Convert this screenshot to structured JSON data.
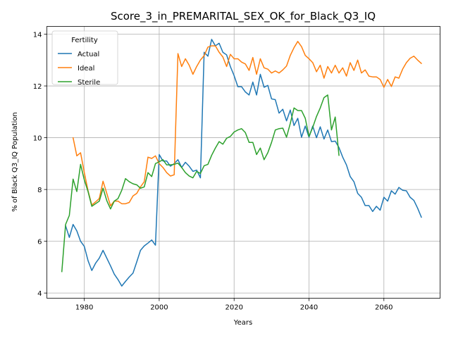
{
  "chart_data": {
    "type": "line",
    "title": "Score_3_in_PREMARITAL_SEX_OK_for_Black_Q3_IQ",
    "xlabel": "Years",
    "ylabel": "% of Black Q3_IQ Population",
    "xlim": [
      1970,
      2075
    ],
    "ylim": [
      3.8,
      14.3
    ],
    "xticks": [
      1980,
      2000,
      2020,
      2040,
      2060
    ],
    "yticks": [
      4,
      6,
      8,
      10,
      12,
      14
    ],
    "grid": true,
    "legend": {
      "title": "Fertility",
      "placement": "top-left"
    },
    "series": [
      {
        "name": "Actual",
        "color": "#1f77b4",
        "x": [
          1975,
          1976,
          1977,
          1978,
          1979,
          1980,
          1981,
          1982,
          1983,
          1984,
          1985,
          1986,
          1987,
          1988,
          1989,
          1990,
          1991,
          1992,
          1993,
          1994,
          1995,
          1996,
          1997,
          1998,
          1999,
          2000,
          2001,
          2002,
          2003,
          2004,
          2005,
          2006,
          2007,
          2008,
          2009,
          2010,
          2011,
          2012,
          2013,
          2014,
          2015,
          2016,
          2017,
          2018,
          2019,
          2020,
          2021,
          2022,
          2023,
          2024,
          2025,
          2026,
          2027,
          2028,
          2029,
          2030,
          2031,
          2032,
          2033,
          2034,
          2035,
          2036,
          2037,
          2038,
          2039,
          2040,
          2041,
          2042,
          2043,
          2044,
          2045,
          2046,
          2047,
          2048,
          2049,
          2050,
          2051,
          2052,
          2053,
          2054,
          2055,
          2056,
          2057,
          2058,
          2059,
          2060,
          2061,
          2062,
          2063,
          2064,
          2065,
          2066,
          2067,
          2068,
          2069,
          2070
        ],
        "values": [
          6.6,
          6.15,
          6.65,
          6.4,
          6.0,
          5.8,
          5.25,
          4.87,
          5.15,
          5.35,
          5.65,
          5.35,
          5.05,
          4.73,
          4.52,
          4.27,
          4.45,
          4.62,
          4.77,
          5.2,
          5.65,
          5.82,
          5.93,
          6.05,
          5.85,
          9.35,
          9.1,
          9.1,
          8.9,
          9.0,
          9.15,
          8.85,
          9.05,
          8.9,
          8.7,
          8.75,
          8.45,
          13.3,
          13.15,
          13.8,
          13.55,
          13.65,
          13.3,
          13.2,
          12.75,
          12.4,
          11.97,
          11.97,
          11.77,
          11.65,
          12.15,
          11.65,
          12.45,
          11.95,
          12.02,
          11.5,
          11.47,
          10.95,
          11.1,
          10.65,
          11.07,
          10.47,
          10.75,
          10.02,
          10.45,
          10.02,
          10.45,
          10.0,
          10.42,
          9.95,
          10.3,
          9.85,
          9.87,
          9.62,
          9.25,
          8.95,
          8.5,
          8.3,
          7.85,
          7.7,
          7.38,
          7.38,
          7.15,
          7.35,
          7.2,
          7.7,
          7.55,
          7.95,
          7.82,
          8.08,
          7.97,
          7.95,
          7.7,
          7.58,
          7.28,
          6.93
        ]
      },
      {
        "name": "Ideal",
        "color": "#ff7f0e",
        "x": [
          1977,
          1978,
          1979,
          1980,
          1981,
          1982,
          1983,
          1984,
          1985,
          1986,
          1987,
          1988,
          1989,
          1990,
          1991,
          1992,
          1993,
          1994,
          1995,
          1996,
          1997,
          1998,
          1999,
          2000,
          2001,
          2002,
          2003,
          2004,
          2005,
          2006,
          2007,
          2008,
          2009,
          2010,
          2011,
          2012,
          2013,
          2014,
          2015,
          2016,
          2017,
          2018,
          2019,
          2020,
          2021,
          2022,
          2023,
          2024,
          2025,
          2026,
          2027,
          2028,
          2029,
          2030,
          2031,
          2032,
          2033,
          2034,
          2035,
          2036,
          2037,
          2038,
          2039,
          2040,
          2041,
          2042,
          2043,
          2044,
          2045,
          2046,
          2047,
          2048,
          2049,
          2050,
          2051,
          2052,
          2053,
          2054,
          2055,
          2056,
          2057,
          2058,
          2059,
          2060,
          2061,
          2062,
          2063,
          2064,
          2065,
          2066,
          2067,
          2068,
          2069,
          2070
        ],
        "values": [
          10.0,
          9.3,
          9.42,
          8.65,
          7.95,
          7.4,
          7.52,
          7.65,
          8.32,
          7.85,
          7.37,
          7.55,
          7.55,
          7.45,
          7.45,
          7.5,
          7.75,
          7.85,
          8.1,
          8.3,
          9.25,
          9.2,
          9.3,
          9.0,
          8.85,
          8.65,
          8.52,
          8.57,
          13.25,
          12.75,
          13.05,
          12.8,
          12.45,
          12.75,
          13.0,
          13.17,
          13.5,
          13.55,
          13.55,
          13.3,
          13.12,
          12.75,
          13.22,
          13.05,
          13.05,
          12.92,
          12.85,
          12.6,
          13.1,
          12.45,
          13.05,
          12.7,
          12.65,
          12.5,
          12.58,
          12.5,
          12.62,
          12.77,
          13.18,
          13.48,
          13.72,
          13.52,
          13.18,
          13.05,
          12.9,
          12.55,
          12.8,
          12.3,
          12.75,
          12.5,
          12.8,
          12.5,
          12.7,
          12.38,
          12.9,
          12.6,
          13.0,
          12.5,
          12.62,
          12.38,
          12.35,
          12.35,
          12.25,
          11.95,
          12.25,
          11.98,
          12.35,
          12.3,
          12.65,
          12.9,
          13.07,
          13.15,
          13.0,
          12.87
        ]
      },
      {
        "name": "Sterile",
        "color": "#2ca02c",
        "x": [
          1974,
          1975,
          1976,
          1977,
          1978,
          1979,
          1980,
          1981,
          1982,
          1983,
          1984,
          1985,
          1986,
          1987,
          1988,
          1989,
          1990,
          1991,
          1992,
          1993,
          1994,
          1995,
          1996,
          1997,
          1998,
          1999,
          2000,
          2001,
          2002,
          2003,
          2004,
          2005,
          2006,
          2007,
          2008,
          2009,
          2010,
          2011,
          2012,
          2013,
          2014,
          2015,
          2016,
          2017,
          2018,
          2019,
          2020,
          2021,
          2022,
          2023,
          2024,
          2025,
          2026,
          2027,
          2028,
          2029,
          2030,
          2031,
          2032,
          2033,
          2034,
          2035,
          2036,
          2037,
          2038,
          2039,
          2040,
          2041,
          2042,
          2043,
          2044,
          2045,
          2046,
          2047,
          2048
        ],
        "values": [
          4.83,
          6.65,
          7.0,
          8.4,
          7.92,
          8.97,
          8.37,
          7.92,
          7.35,
          7.45,
          7.55,
          8.05,
          7.57,
          7.25,
          7.55,
          7.65,
          7.97,
          8.42,
          8.3,
          8.22,
          8.18,
          8.05,
          8.1,
          8.65,
          8.5,
          9.0,
          9.07,
          9.15,
          8.95,
          8.95,
          8.97,
          9.02,
          8.85,
          8.65,
          8.52,
          8.45,
          8.7,
          8.62,
          8.92,
          8.97,
          9.32,
          9.6,
          9.85,
          9.75,
          9.98,
          10.05,
          10.22,
          10.3,
          10.35,
          10.2,
          9.82,
          9.82,
          9.35,
          9.6,
          9.15,
          9.42,
          9.82,
          10.3,
          10.35,
          10.37,
          10.02,
          10.55,
          11.15,
          11.05,
          11.05,
          10.75,
          10.05,
          10.4,
          10.82,
          11.15,
          11.55,
          11.65,
          10.3,
          10.8,
          9.32
        ]
      }
    ]
  }
}
